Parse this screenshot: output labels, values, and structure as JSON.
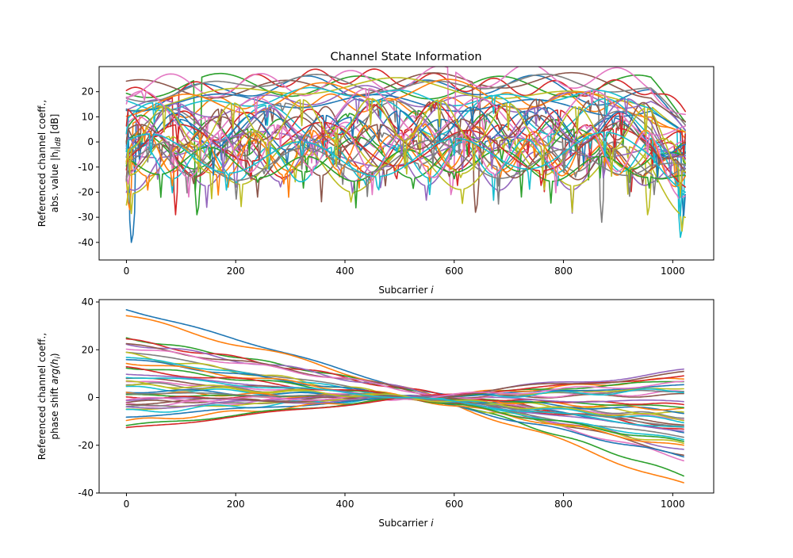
{
  "chart_data": [
    {
      "type": "line",
      "title": "Channel State Information",
      "xlabel": "Subcarrier",
      "xlabel_var": "i",
      "ylabel_line1": "Referenced channel coeff.,",
      "ylabel_line2": "abs. value |h",
      "ylabel_sub": "i",
      "ylabel_line2b": "|",
      "ylabel_sub2": "dB",
      "ylabel_line2c": " [dB]",
      "xlim": [
        -50,
        1075
      ],
      "ylim": [
        -47,
        30
      ],
      "xticks": [
        0,
        200,
        400,
        600,
        800,
        1000
      ],
      "yticks": [
        -40,
        -30,
        -20,
        -10,
        0,
        10,
        20
      ],
      "n_subcarriers": 1024,
      "n_series": 40,
      "series_description_levels_dB": {
        "upper_group_range": [
          10,
          26
        ],
        "lower_group_range": [
          -10,
          12
        ],
        "deep_fade_minimum": -43,
        "edge_rolloff_start": 960
      },
      "notable_nulls": [
        {
          "x": 10,
          "y": -43
        },
        {
          "x": 5,
          "y": -30
        },
        {
          "x": 130,
          "y": -32
        },
        {
          "x": 90,
          "y": -29
        },
        {
          "x": 200,
          "y": -21
        },
        {
          "x": 640,
          "y": -31
        },
        {
          "x": 595,
          "y": -24
        },
        {
          "x": 870,
          "y": -32
        },
        {
          "x": 955,
          "y": -32
        },
        {
          "x": 1015,
          "y": -41
        },
        {
          "x": 1020,
          "y": -30
        }
      ]
    },
    {
      "type": "line",
      "title": "",
      "xlabel": "Subcarrier",
      "xlabel_var": "i",
      "ylabel_line1": "Referenced channel coeff.,",
      "ylabel_line2": "phase shift ",
      "ylabel_var": "arg(h",
      "ylabel_sub": "i",
      "ylabel_end": ")",
      "xlim": [
        -50,
        1075
      ],
      "ylim": [
        -40,
        41
      ],
      "xticks": [
        0,
        200,
        400,
        600,
        800,
        1000
      ],
      "yticks": [
        -40,
        -20,
        0,
        20,
        40
      ],
      "n_subcarriers": 1024,
      "pivot_subcarrier": 520,
      "series_start_end": [
        [
          37,
          -15
        ],
        [
          34,
          -37
        ],
        [
          25,
          -33
        ],
        [
          24,
          -14
        ],
        [
          23,
          -22
        ],
        [
          22,
          -24
        ],
        [
          21,
          -26
        ],
        [
          19,
          -17
        ],
        [
          18,
          -20
        ],
        [
          17,
          -18
        ],
        [
          16,
          -25
        ],
        [
          15,
          -21
        ],
        [
          13,
          -19
        ],
        [
          12,
          -12
        ],
        [
          10,
          -14
        ],
        [
          8,
          -11
        ],
        [
          7,
          -9
        ],
        [
          6,
          -8
        ],
        [
          5,
          -7
        ],
        [
          4,
          -10
        ],
        [
          3,
          -6
        ],
        [
          2,
          -5
        ],
        [
          1,
          -4
        ],
        [
          0,
          -3
        ],
        [
          -1,
          -2
        ],
        [
          -2,
          1
        ],
        [
          -3,
          2
        ],
        [
          -4,
          3
        ],
        [
          -5,
          4
        ],
        [
          -6,
          3
        ],
        [
          -8,
          5
        ],
        [
          -10,
          8
        ],
        [
          -12,
          7
        ],
        [
          -13,
          9
        ],
        [
          -4,
          11
        ],
        [
          -2,
          10
        ],
        [
          -1,
          6
        ],
        [
          2,
          -12
        ],
        [
          6,
          -9
        ],
        [
          9,
          -13
        ]
      ]
    }
  ],
  "colors": [
    "#1f77b4",
    "#ff7f0e",
    "#2ca02c",
    "#d62728",
    "#9467bd",
    "#8c564b",
    "#e377c2",
    "#7f7f7f",
    "#bcbd22",
    "#17becf"
  ]
}
